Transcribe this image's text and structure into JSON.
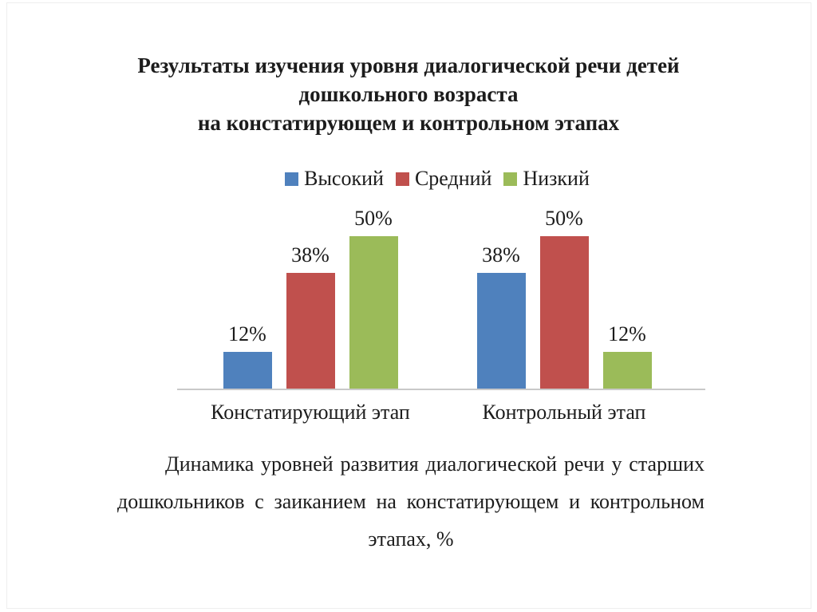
{
  "slide": {
    "title_lines": [
      "Результаты изучения уровня диалогической речи детей",
      "дошкольного возраста",
      "на констатирующем и контрольном этапах"
    ],
    "caption": "Динамика уровней развития диалогической речи у старших дошкольников с заиканием на констатирующем и контрольном этапах, %"
  },
  "chart_data": {
    "type": "bar",
    "title": "Результаты изучения уровня диалогической речи детей дошкольного возраста на констатирующем и контрольном этапах",
    "categories": [
      "Констатирующий этап",
      "Контрольный этап"
    ],
    "series": [
      {
        "name": "Высокий",
        "color": "#4f81bd",
        "values": [
          12,
          38
        ]
      },
      {
        "name": "Средний",
        "color": "#c0504d",
        "values": [
          38,
          50
        ]
      },
      {
        "name": "Низкий",
        "color": "#9bbb59",
        "values": [
          50,
          12
        ]
      }
    ],
    "unit": "%",
    "data_labels_shown": true,
    "legend_position": "top",
    "grid": false,
    "axis_color": "#c9c9c9",
    "ylim": [
      0,
      55
    ]
  }
}
